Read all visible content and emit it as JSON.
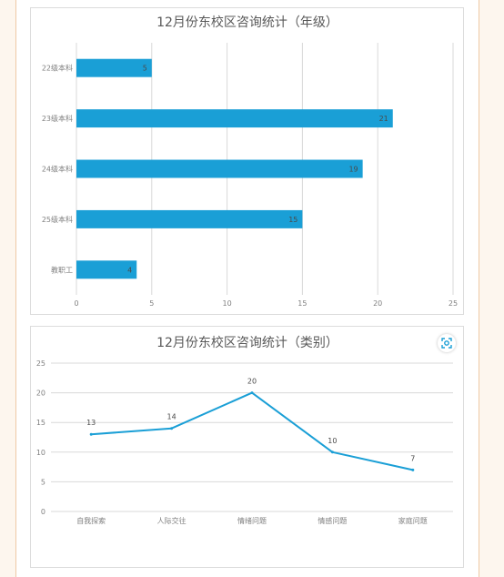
{
  "chart_data": [
    {
      "type": "bar",
      "orientation": "horizontal",
      "title": "12月份东校区咨询统计（年级）",
      "categories": [
        "22级本科",
        "23级本科",
        "24级本科",
        "25级本科",
        "教职工"
      ],
      "values": [
        5,
        21,
        19,
        15,
        4
      ],
      "xlim": [
        0,
        25
      ],
      "xticks": [
        0,
        5,
        10,
        15,
        20,
        25
      ],
      "grid": true,
      "data_labels": true,
      "color": "#1a9fd6"
    },
    {
      "type": "line",
      "title": "12月份东校区咨询统计（类别）",
      "categories": [
        "自我探索",
        "人际交往",
        "情绪问题",
        "情感问题",
        "家庭问题"
      ],
      "values": [
        13,
        14,
        20,
        10,
        7
      ],
      "ylim": [
        0,
        25
      ],
      "yticks": [
        0,
        5,
        10,
        15,
        20,
        25
      ],
      "grid": true,
      "data_labels": true,
      "color": "#1a9fd6"
    }
  ],
  "ui": {
    "screenshot_icon": "camera-scan-icon"
  }
}
